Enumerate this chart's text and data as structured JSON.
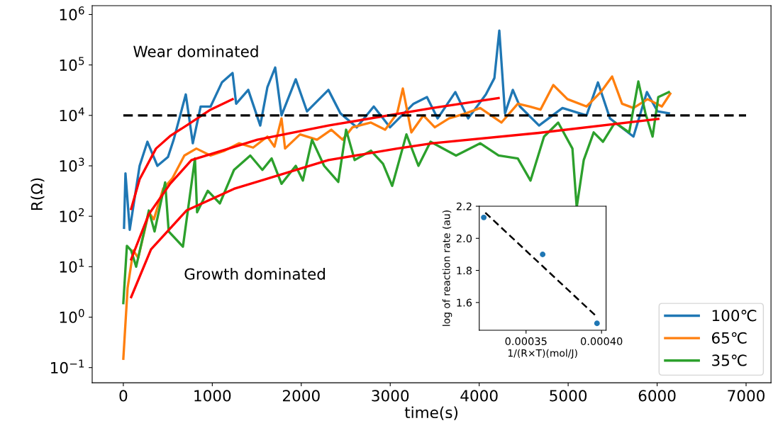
{
  "chart_data": [
    {
      "type": "line",
      "xlabel": "time(s)",
      "ylabel": "R(Ω)",
      "log": "y",
      "xlim": [
        -350,
        7280
      ],
      "ylim": [
        0.05,
        1500000
      ],
      "xticks": [
        0,
        1000,
        2000,
        3000,
        4000,
        5000,
        6000,
        7000
      ],
      "yticks": [
        {
          "value": 0.1,
          "label": "10$^{−1}$"
        },
        {
          "value": 1,
          "label": "10$^{0}$"
        },
        {
          "value": 10,
          "label": "10$^{1}$"
        },
        {
          "value": 100,
          "label": "10$^{2}$"
        },
        {
          "value": 1000,
          "label": "10$^{3}$"
        },
        {
          "value": 10000,
          "label": "10$^{4}$"
        },
        {
          "value": 100000,
          "label": "10$^{5}$"
        },
        {
          "value": 1000000,
          "label": "10$^{6}$"
        }
      ],
      "legend": "bottom right",
      "grid": false,
      "marker": "none",
      "annotations": [
        "Wear dominated",
        "Growth dominated"
      ],
      "series": [
        {
          "name": "100℃",
          "color": "#1f77b4",
          "x": [
            8,
            24,
            72,
            183,
            271,
            383,
            502,
            566,
            702,
            781,
            869,
            981,
            1108,
            1228,
            1268,
            1404,
            1539,
            1619,
            1707,
            1778,
            1938,
            2065,
            2305,
            2440,
            2624,
            2815,
            2998,
            3262,
            3413,
            3533,
            3732,
            3876,
            4075,
            4171,
            4226,
            4290,
            4378,
            4458,
            4673,
            4936,
            5207,
            5335,
            5470,
            5734,
            5885,
            6005,
            6132
          ],
          "values": [
            59,
            710,
            54,
            1000,
            3000,
            1000,
            1500,
            3300,
            26000,
            2800,
            15000,
            15000,
            45000,
            69000,
            17000,
            32000,
            6300,
            36000,
            89000,
            10000,
            52000,
            12000,
            32000,
            11000,
            5800,
            15000,
            5800,
            17000,
            23000,
            8700,
            29000,
            8700,
            26000,
            55000,
            480000,
            11000,
            32000,
            15000,
            6300,
            14000,
            10000,
            45000,
            8700,
            3800,
            29000,
            12000,
            11000
          ]
        },
        {
          "name": "65℃",
          "color": "#ff7f0e",
          "x": [
            0,
            48,
            112,
            167,
            287,
            343,
            447,
            550,
            686,
            821,
            981,
            1140,
            1300,
            1459,
            1619,
            1699,
            1778,
            1818,
            1986,
            2177,
            2337,
            2464,
            2576,
            2783,
            2943,
            3078,
            3142,
            3238,
            3373,
            3501,
            3660,
            3852,
            4011,
            4250,
            4434,
            4569,
            4689,
            4833,
            4992,
            5207,
            5367,
            5494,
            5606,
            5734,
            5893,
            6053,
            6148
          ],
          "values": [
            0.15,
            3.8,
            21,
            15,
            120,
            87,
            350,
            560,
            1600,
            2200,
            1600,
            2000,
            2800,
            2300,
            3800,
            2400,
            8700,
            2200,
            4200,
            3300,
            5200,
            3300,
            5800,
            7200,
            5200,
            11000,
            34000,
            4600,
            10000,
            5800,
            8700,
            11000,
            14000,
            7200,
            17000,
            15000,
            13000,
            40000,
            21000,
            15000,
            29000,
            59000,
            17000,
            14000,
            21000,
            15000,
            27000
          ]
        },
        {
          "name": "35℃",
          "color": "#2ca02c",
          "x": [
            0,
            40,
            88,
            144,
            287,
            351,
            470,
            510,
            670,
            805,
            829,
            949,
            1085,
            1244,
            1427,
            1563,
            1667,
            1778,
            1938,
            2018,
            2121,
            2257,
            2416,
            2504,
            2600,
            2783,
            2919,
            3022,
            3182,
            3317,
            3453,
            3740,
            4011,
            4218,
            4434,
            4577,
            4729,
            4888,
            5048,
            5096,
            5175,
            5287,
            5391,
            5526,
            5686,
            5789,
            5869,
            5949,
            6013,
            6132
          ],
          "values": [
            1.9,
            26,
            21,
            10,
            130,
            50,
            470,
            50,
            25,
            1400,
            120,
            320,
            180,
            830,
            1600,
            830,
            1400,
            440,
            1000,
            510,
            3300,
            1000,
            480,
            5200,
            1300,
            2000,
            1100,
            400,
            4200,
            1000,
            3000,
            1600,
            2800,
            1600,
            1400,
            510,
            3800,
            7200,
            2200,
            150,
            1300,
            4600,
            3000,
            7200,
            4600,
            47000,
            11000,
            3800,
            23000,
            29000
          ]
        },
        {
          "color": "#ff0000",
          "x": [
            88,
            183,
            367,
            526,
            710,
            981,
            1228
          ],
          "values": [
            140,
            540,
            2200,
            3900,
            6300,
            13000,
            21000
          ]
        },
        {
          "color": "#ff0000",
          "x": [
            88,
            287,
            526,
            766,
            1507,
            2305,
            3477,
            4218
          ],
          "values": [
            14,
            110,
            440,
            1300,
            3300,
            6300,
            14000,
            22000
          ]
        },
        {
          "color": "#ff0000",
          "x": [
            88,
            311,
            710,
            1244,
            2305,
            3078,
            3477,
            4673,
            6013
          ],
          "values": [
            2.5,
            22,
            130,
            350,
            1300,
            2200,
            2800,
            4500,
            8500
          ]
        },
        {
          "color": "#000000",
          "line_style": "dashed",
          "x": [
            0,
            7000
          ],
          "values": [
            10000,
            10000
          ]
        }
      ]
    },
    {
      "type": "scatter",
      "xlabel": "1/(R×T)(mol/J)",
      "ylabel": "log of reaction rate (au)",
      "xlim": [
        0.000319,
        0.000403
      ],
      "ylim": [
        1.427,
        2.2
      ],
      "xticks": [
        {
          "value": 0.00035,
          "label": "0.00035"
        },
        {
          "value": 0.0004,
          "label": "0.00040"
        }
      ],
      "yticks": [
        {
          "value": 1.6,
          "label": "1.6"
        },
        {
          "value": 1.8,
          "label": "1.8"
        },
        {
          "value": 2.0,
          "label": "2.0"
        },
        {
          "value": 2.2,
          "label": "2.2"
        }
      ],
      "grid": false,
      "marker": "circle",
      "series": [
        {
          "color": "#1f77b4",
          "x": [
            0.000322,
            0.000361,
            0.000397
          ],
          "values": [
            2.13,
            1.9,
            1.47
          ]
        },
        {
          "type": "line",
          "color": "#000000",
          "line_style": "dashed",
          "marker": "none",
          "x": [
            0.000323,
            0.000397
          ],
          "values": [
            2.16,
            1.51
          ]
        }
      ]
    }
  ]
}
